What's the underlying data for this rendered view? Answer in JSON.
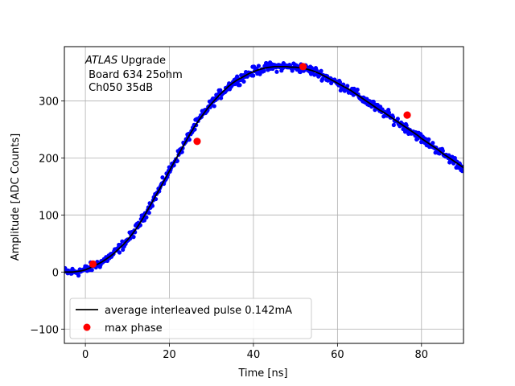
{
  "chart_data": {
    "type": "scatter",
    "xlabel": "Time [ns]",
    "ylabel": "Amplitude [ADC Counts]",
    "xlim": [
      -5,
      90
    ],
    "ylim": [
      -125,
      395
    ],
    "xticks": [
      0,
      20,
      40,
      60,
      80
    ],
    "yticks": [
      -100,
      0,
      100,
      200,
      300
    ],
    "ytick_labels": [
      "−100",
      "0",
      "100",
      "200",
      "300"
    ],
    "grid": true,
    "legend_position": "lower-left",
    "annotation": {
      "italic": "ATLAS",
      "rest": " Upgrade",
      "line2": " Board 634 25ohm",
      "line3": " Ch050 35dB"
    },
    "series": [
      {
        "name": "average interleaved pulse 0.142mA",
        "kind": "line",
        "color": "#000000",
        "x": [
          -5,
          -4,
          -3,
          -2,
          -1,
          0,
          1,
          2,
          3,
          4,
          5,
          6,
          7,
          8,
          9,
          10,
          11,
          12,
          13,
          14,
          15,
          16,
          17,
          18,
          19,
          20,
          21,
          22,
          23,
          24,
          25,
          26,
          27,
          28,
          29,
          30,
          31,
          32,
          33,
          34,
          35,
          36,
          37,
          38,
          39,
          40,
          41,
          42,
          43,
          44,
          45,
          46,
          47,
          48,
          49,
          50,
          51,
          52,
          53,
          54,
          55,
          56,
          57,
          58,
          59,
          60,
          61,
          62,
          63,
          64,
          65,
          66,
          67,
          68,
          69,
          70,
          71,
          72,
          73,
          74,
          75,
          76,
          77,
          78,
          79,
          80,
          81,
          82,
          83,
          84,
          85,
          86,
          87,
          88,
          89,
          90
        ],
        "y": [
          0,
          0,
          0,
          1,
          2,
          4,
          7,
          11,
          14,
          18,
          23,
          28,
          34,
          41,
          48,
          56,
          65,
          75,
          86,
          98,
          111,
          124,
          137,
          150,
          164,
          177,
          191,
          204,
          217,
          230,
          243,
          255,
          266,
          276,
          286,
          295,
          303,
          311,
          318,
          325,
          331,
          336,
          340,
          344,
          348,
          351,
          354,
          356,
          358,
          359,
          360,
          360,
          360,
          360,
          359,
          359,
          358,
          357,
          355,
          353,
          350,
          347,
          343,
          339,
          335,
          331,
          327,
          323,
          319,
          314,
          309,
          304,
          299,
          294,
          289,
          284,
          280,
          275,
          270,
          265,
          260,
          255,
          250,
          245,
          240,
          234,
          229,
          224,
          219,
          214,
          208,
          203,
          198,
          193,
          188,
          183
        ]
      },
      {
        "name": "",
        "kind": "scatter",
        "color": "#0000ff",
        "noise": 5
      },
      {
        "name": "max phase",
        "kind": "scatter",
        "color": "#ff0000",
        "x": [
          1.8,
          26.6,
          51.8,
          76.6
        ],
        "y": [
          14,
          229,
          360,
          275
        ]
      }
    ]
  }
}
